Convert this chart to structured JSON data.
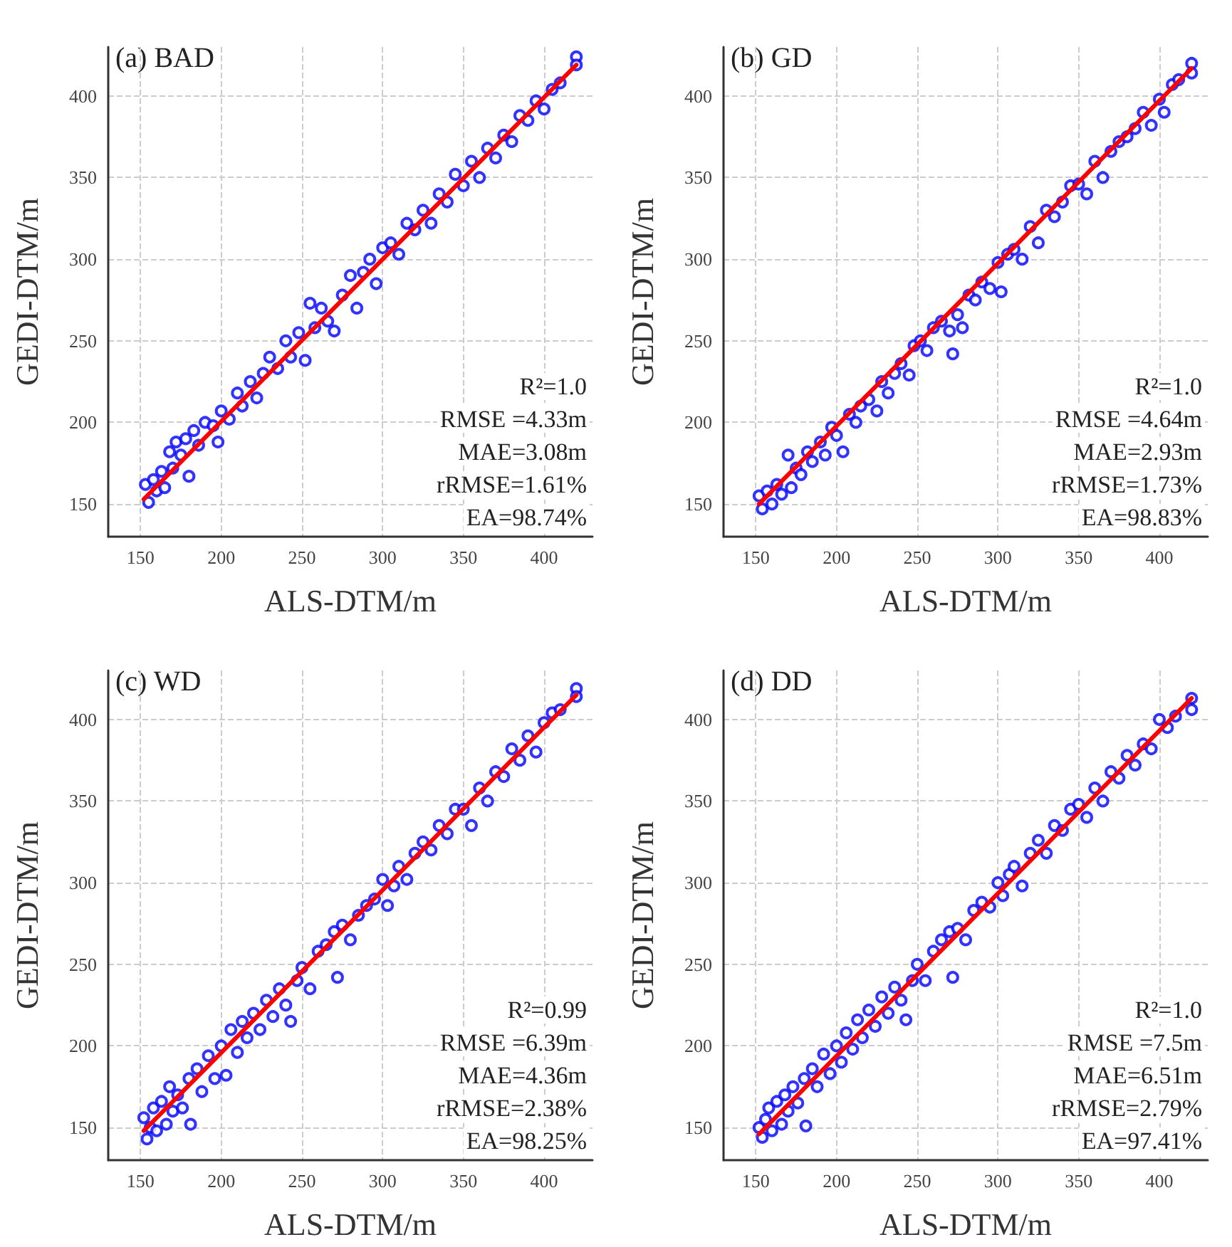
{
  "chart_data": [
    {
      "type": "scatter",
      "title": "(a) BAD",
      "xlabel": "ALS-DTM/m",
      "ylabel": "GEDI-DTM/m",
      "xlim": [
        130,
        430
      ],
      "ylim": [
        130,
        430
      ],
      "xticks": [
        150,
        200,
        250,
        300,
        350,
        400
      ],
      "yticks": [
        150,
        200,
        250,
        300,
        350,
        400
      ],
      "grid": true,
      "annotations": [
        "R²=1.0",
        "RMSE =4.33m",
        "MAE=3.08m",
        "rRMSE=1.61%",
        "EA=98.74%"
      ],
      "series": [
        {
          "color": "#0000ff",
          "marker": "circle",
          "x": [
            153,
            155,
            158,
            160,
            163,
            165,
            168,
            170,
            172,
            175,
            178,
            180,
            183,
            186,
            190,
            195,
            198,
            200,
            205,
            210,
            213,
            218,
            222,
            226,
            230,
            235,
            240,
            243,
            248,
            252,
            255,
            258,
            262,
            266,
            270,
            275,
            280,
            284,
            288,
            292,
            296,
            300,
            305,
            310,
            315,
            320,
            325,
            330,
            335,
            340,
            345,
            350,
            355,
            360,
            365,
            370,
            375,
            380,
            385,
            390,
            395,
            400,
            405,
            410,
            420,
            420
          ],
          "values": [
            162,
            151,
            165,
            158,
            170,
            160,
            182,
            172,
            188,
            180,
            190,
            167,
            195,
            186,
            200,
            198,
            188,
            207,
            202,
            218,
            210,
            225,
            215,
            230,
            240,
            233,
            250,
            240,
            255,
            238,
            273,
            258,
            270,
            262,
            256,
            278,
            290,
            270,
            292,
            300,
            285,
            307,
            310,
            303,
            322,
            318,
            330,
            322,
            340,
            335,
            352,
            345,
            360,
            350,
            368,
            362,
            376,
            372,
            388,
            385,
            397,
            392,
            404,
            408,
            424,
            419
          ]
        },
        {
          "type": "line",
          "color": "#ff0000",
          "x": [
            152,
            420
          ],
          "values": [
            153,
            419
          ]
        }
      ]
    },
    {
      "type": "scatter",
      "title": "(b) GD",
      "xlabel": "ALS-DTM/m",
      "ylabel": "GEDI-DTM/m",
      "xlim": [
        130,
        430
      ],
      "ylim": [
        130,
        430
      ],
      "xticks": [
        150,
        200,
        250,
        300,
        350,
        400
      ],
      "yticks": [
        150,
        200,
        250,
        300,
        350,
        400
      ],
      "grid": true,
      "annotations": [
        "R²=1.0",
        "RMSE =4.64m",
        "MAE=2.93m",
        "rRMSE=1.73%",
        "EA=98.83%"
      ],
      "series": [
        {
          "color": "#0000ff",
          "marker": "circle",
          "x": [
            152,
            154,
            157,
            160,
            163,
            166,
            170,
            172,
            175,
            178,
            182,
            185,
            190,
            193,
            197,
            200,
            204,
            208,
            212,
            215,
            220,
            225,
            228,
            232,
            236,
            240,
            245,
            248,
            252,
            256,
            260,
            265,
            270,
            272,
            275,
            278,
            282,
            286,
            290,
            295,
            300,
            302,
            306,
            310,
            315,
            320,
            325,
            330,
            335,
            340,
            345,
            350,
            355,
            360,
            365,
            370,
            375,
            380,
            385,
            390,
            395,
            400,
            403,
            408,
            412,
            420,
            420
          ],
          "values": [
            155,
            147,
            158,
            150,
            162,
            156,
            180,
            160,
            172,
            168,
            182,
            176,
            188,
            180,
            197,
            192,
            182,
            205,
            200,
            210,
            214,
            207,
            225,
            218,
            230,
            236,
            229,
            247,
            250,
            244,
            258,
            262,
            256,
            242,
            266,
            258,
            278,
            275,
            286,
            282,
            298,
            280,
            303,
            306,
            300,
            320,
            310,
            330,
            326,
            335,
            345,
            346,
            340,
            360,
            350,
            366,
            372,
            375,
            380,
            390,
            382,
            398,
            390,
            407,
            410,
            420,
            414
          ]
        },
        {
          "type": "line",
          "color": "#ff0000",
          "x": [
            152,
            420
          ],
          "values": [
            150,
            417
          ]
        }
      ]
    },
    {
      "type": "scatter",
      "title": "(c) WD",
      "xlabel": "ALS-DTM/m",
      "ylabel": "GEDI-DTM/m",
      "xlim": [
        130,
        430
      ],
      "ylim": [
        130,
        430
      ],
      "xticks": [
        150,
        200,
        250,
        300,
        350,
        400
      ],
      "yticks": [
        150,
        200,
        250,
        300,
        350,
        400
      ],
      "grid": true,
      "annotations": [
        "R²=0.99",
        "RMSE =6.39m",
        "MAE=4.36m",
        "rRMSE=2.38%",
        "EA=98.25%"
      ],
      "series": [
        {
          "color": "#0000ff",
          "marker": "circle",
          "x": [
            152,
            154,
            156,
            158,
            160,
            163,
            166,
            168,
            170,
            173,
            176,
            180,
            181,
            185,
            188,
            192,
            196,
            200,
            203,
            206,
            210,
            213,
            216,
            220,
            224,
            228,
            232,
            236,
            240,
            243,
            247,
            250,
            255,
            260,
            265,
            270,
            272,
            275,
            280,
            285,
            290,
            295,
            300,
            303,
            307,
            310,
            315,
            320,
            325,
            330,
            335,
            340,
            345,
            350,
            355,
            360,
            365,
            370,
            375,
            380,
            385,
            390,
            395,
            400,
            405,
            410,
            420,
            420
          ],
          "values": [
            156,
            143,
            150,
            162,
            148,
            166,
            152,
            175,
            160,
            170,
            162,
            180,
            152,
            186,
            172,
            194,
            180,
            200,
            182,
            210,
            196,
            215,
            205,
            220,
            210,
            228,
            218,
            235,
            225,
            215,
            240,
            248,
            235,
            258,
            262,
            270,
            242,
            274,
            265,
            280,
            286,
            290,
            302,
            286,
            298,
            310,
            302,
            318,
            325,
            320,
            335,
            330,
            345,
            345,
            335,
            358,
            350,
            368,
            365,
            382,
            375,
            390,
            380,
            398,
            404,
            406,
            419,
            414
          ]
        },
        {
          "type": "line",
          "color": "#ff0000",
          "x": [
            152,
            420
          ],
          "values": [
            148,
            415
          ]
        }
      ]
    },
    {
      "type": "scatter",
      "title": "(d) DD",
      "xlabel": "ALS-DTM/m",
      "ylabel": "GEDI-DTM/m",
      "xlim": [
        130,
        430
      ],
      "ylim": [
        130,
        430
      ],
      "xticks": [
        150,
        200,
        250,
        300,
        350,
        400
      ],
      "yticks": [
        150,
        200,
        250,
        300,
        350,
        400
      ],
      "grid": true,
      "annotations": [
        "R²=1.0",
        "RMSE =7.5m",
        "MAE=6.51m",
        "rRMSE=2.79%",
        "EA=97.41%"
      ],
      "series": [
        {
          "color": "#0000ff",
          "marker": "circle",
          "x": [
            152,
            154,
            156,
            158,
            160,
            163,
            166,
            168,
            170,
            173,
            176,
            180,
            181,
            185,
            188,
            192,
            196,
            200,
            203,
            206,
            210,
            213,
            216,
            220,
            224,
            228,
            232,
            236,
            240,
            243,
            247,
            250,
            255,
            260,
            265,
            270,
            272,
            275,
            280,
            285,
            290,
            295,
            300,
            303,
            307,
            310,
            315,
            320,
            325,
            330,
            335,
            340,
            345,
            350,
            355,
            360,
            365,
            370,
            375,
            380,
            385,
            390,
            395,
            400,
            405,
            410,
            420,
            420
          ],
          "values": [
            150,
            144,
            155,
            162,
            148,
            166,
            152,
            170,
            160,
            175,
            165,
            180,
            151,
            186,
            175,
            195,
            183,
            200,
            190,
            208,
            198,
            216,
            205,
            222,
            212,
            230,
            220,
            236,
            228,
            216,
            240,
            250,
            240,
            258,
            265,
            270,
            242,
            272,
            265,
            283,
            288,
            285,
            300,
            292,
            305,
            310,
            298,
            318,
            326,
            318,
            335,
            332,
            345,
            348,
            340,
            358,
            350,
            368,
            364,
            378,
            372,
            385,
            382,
            400,
            395,
            402,
            413,
            406
          ]
        },
        {
          "type": "line",
          "color": "#ff0000",
          "x": [
            152,
            420
          ],
          "values": [
            146,
            413
          ]
        }
      ]
    }
  ]
}
